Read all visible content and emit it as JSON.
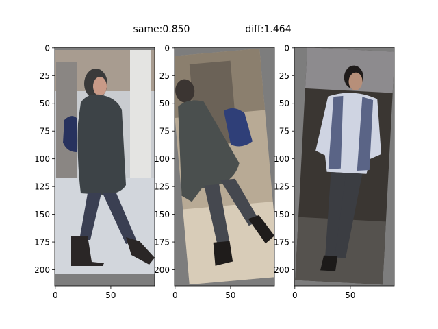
{
  "headers": {
    "same_label": "same:0.850",
    "diff_label": "diff:1.464"
  },
  "panels": [
    {
      "role": "anchor",
      "x_ticks": [
        "0",
        "50"
      ],
      "y_ticks": [
        "0",
        "25",
        "50",
        "75",
        "100",
        "125",
        "150",
        "175",
        "200"
      ],
      "colors": {
        "background": "#7d7d7d",
        "scene_light": "#c9ccd0",
        "coat": "#3d4347",
        "jeans": "#3a3f52",
        "boots": "#2a2626"
      }
    },
    {
      "role": "positive",
      "x_ticks": [
        "0",
        "50"
      ],
      "y_ticks": [
        "0",
        "25",
        "50",
        "75",
        "100",
        "125",
        "150",
        "175",
        "200"
      ],
      "colors": {
        "background": "#7d7d7d",
        "scene_light": "#b8aa95",
        "coat": "#4a4f4e",
        "bag": "#2f3f78",
        "jeans": "#45484f"
      }
    },
    {
      "role": "negative",
      "x_ticks": [
        "0",
        "50"
      ],
      "y_ticks": [
        "0",
        "25",
        "50",
        "75",
        "100",
        "125",
        "150",
        "175",
        "200"
      ],
      "colors": {
        "background": "#7d7d7d",
        "scene_dark": "#3a3632",
        "hoodie": "#cfd4e2",
        "vest": "#5a6486",
        "jeans": "#3b3d42"
      }
    }
  ]
}
